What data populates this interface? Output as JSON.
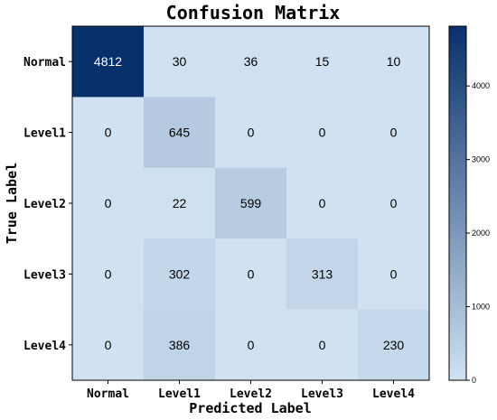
{
  "chart_data": {
    "type": "heatmap",
    "title": "Confusion Matrix",
    "xlabel": "Predicted Label",
    "ylabel": "True Label",
    "x_categories": [
      "Normal",
      "Level1",
      "Level2",
      "Level3",
      "Level4"
    ],
    "y_categories": [
      "Normal",
      "Level1",
      "Level2",
      "Level3",
      "Level4"
    ],
    "values": [
      [
        4812,
        30,
        36,
        15,
        10
      ],
      [
        0,
        645,
        0,
        0,
        0
      ],
      [
        0,
        22,
        599,
        0,
        0
      ],
      [
        0,
        302,
        0,
        313,
        0
      ],
      [
        0,
        386,
        0,
        0,
        230
      ]
    ],
    "colorbar": {
      "min": 0,
      "max": 4812,
      "ticks": [
        0,
        1000,
        2000,
        3000,
        4000
      ],
      "colormap": "Blues",
      "colors": [
        "#d0e2f2",
        "#08306b"
      ]
    },
    "text_colors": {
      "light_cell": "#000000",
      "dark_cell": "#ffffff"
    }
  }
}
